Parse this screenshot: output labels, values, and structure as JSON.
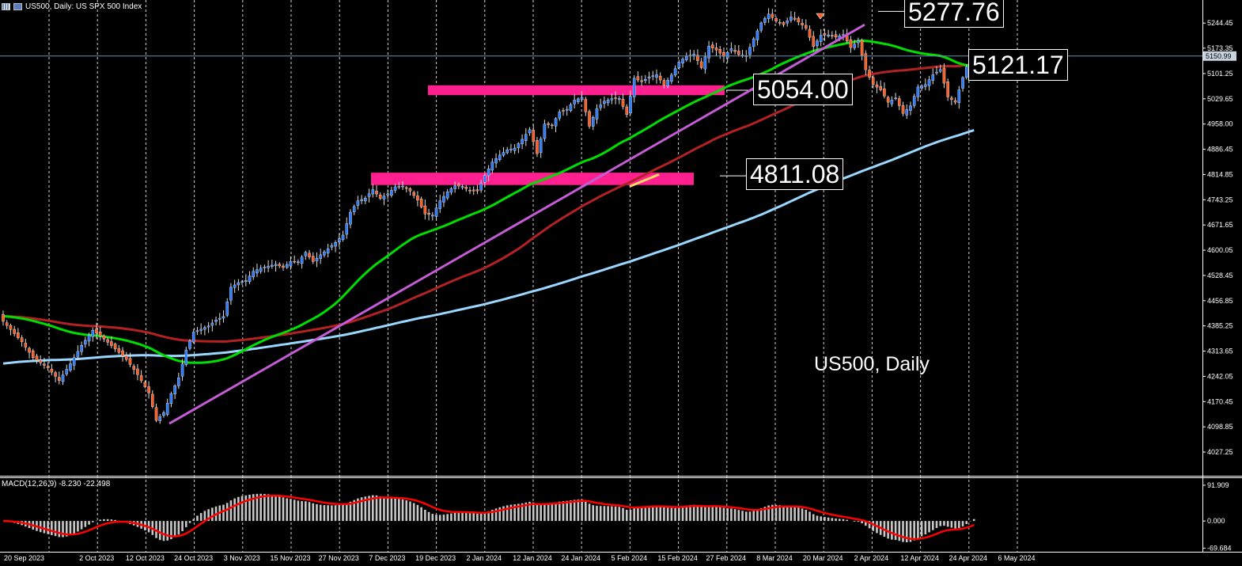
{
  "header": {
    "symbol_text": "US500, Daily:  US SPX 500 Index"
  },
  "watermark": "US500, Daily",
  "macd_label": "MACD(12,26,9) -8.230 -22.498",
  "callouts": {
    "high": "5277.76",
    "current": "5121.17",
    "zone_upper": "5054.00",
    "zone_lower": "4811.08"
  },
  "current_price_tag": "5150.99",
  "colors": {
    "background": "#000000",
    "bull_candle": "#2b7bff",
    "bear_candle": "#ff5a1f",
    "ma_fast": "#00dd00",
    "ma_mid": "#b22222",
    "ma_slow": "#9ad7ff",
    "trendline": "#c45cd6",
    "zones": "#ff1f8f",
    "macd_signal": "#ff0000",
    "macd_hist": "#c8c8c8"
  },
  "chart_data": [
    {
      "type": "candlestick",
      "title": "US500, Daily",
      "y_ticks": [
        "5244.45",
        "5173.35",
        "5101.25",
        "5029.65",
        "4958.00",
        "4886.45",
        "4814.85",
        "4743.25",
        "4671.65",
        "4600.05",
        "4528.45",
        "4456.85",
        "4385.25",
        "4313.65",
        "4242.05",
        "4170.45",
        "4098.85",
        "4027.25"
      ],
      "x_ticks": [
        "20 Sep 2023",
        "2 Oct 2023",
        "12 Oct 2023",
        "24 Oct 2023",
        "3 Nov 2023",
        "15 Nov 2023",
        "27 Nov 2023",
        "7 Dec 2023",
        "19 Dec 2023",
        "2 Jan 2024",
        "12 Jan 2024",
        "24 Jan 2024",
        "5 Feb 2024",
        "15 Feb 2024",
        "27 Feb 2024",
        "8 Mar 2024",
        "20 Mar 2024",
        "2 Apr 2024",
        "12 Apr 2024",
        "24 Apr 2024",
        "6 May 2024"
      ],
      "ylim": [
        3960,
        5310
      ],
      "horizontal_levels": [
        5277.76,
        5121.17,
        5054.0,
        4811.08
      ],
      "support_zones": [
        [
          5040,
          5068
        ],
        [
          4785,
          4820
        ]
      ],
      "close_anchors": [
        [
          0,
          4398
        ],
        [
          5,
          4340
        ],
        [
          8,
          4295
        ],
        [
          12,
          4266
        ],
        [
          15,
          4230
        ],
        [
          18,
          4278
        ],
        [
          21,
          4330
        ],
        [
          24,
          4373
        ],
        [
          27,
          4348
        ],
        [
          30,
          4320
        ],
        [
          33,
          4290
        ],
        [
          36,
          4247
        ],
        [
          39,
          4195
        ],
        [
          41,
          4117
        ],
        [
          43,
          4139
        ],
        [
          45,
          4193
        ],
        [
          47,
          4238
        ],
        [
          49,
          4317
        ],
        [
          51,
          4368
        ],
        [
          53,
          4376
        ],
        [
          55,
          4385
        ],
        [
          57,
          4402
        ],
        [
          59,
          4412
        ],
        [
          61,
          4495
        ],
        [
          63,
          4508
        ],
        [
          65,
          4514
        ],
        [
          67,
          4540
        ],
        [
          69,
          4549
        ],
        [
          71,
          4555
        ],
        [
          73,
          4560
        ],
        [
          75,
          4551
        ],
        [
          77,
          4568
        ],
        [
          79,
          4567
        ],
        [
          81,
          4594
        ],
        [
          83,
          4568
        ],
        [
          85,
          4587
        ],
        [
          87,
          4604
        ],
        [
          89,
          4622
        ],
        [
          91,
          4643
        ],
        [
          93,
          4708
        ],
        [
          95,
          4740
        ],
        [
          97,
          4748
        ],
        [
          99,
          4772
        ],
        [
          101,
          4747
        ],
        [
          103,
          4760
        ],
        [
          105,
          4780
        ],
        [
          107,
          4782
        ],
        [
          109,
          4768
        ],
        [
          111,
          4742
        ],
        [
          113,
          4703
        ],
        [
          115,
          4700
        ],
        [
          117,
          4740
        ],
        [
          119,
          4766
        ],
        [
          121,
          4783
        ],
        [
          123,
          4781
        ],
        [
          125,
          4768
        ],
        [
          127,
          4768
        ],
        [
          129,
          4812
        ],
        [
          131,
          4850
        ],
        [
          133,
          4870
        ],
        [
          135,
          4885
        ],
        [
          137,
          4890
        ],
        [
          139,
          4915
        ],
        [
          141,
          4942
        ],
        [
          143,
          4874
        ],
        [
          145,
          4958
        ],
        [
          147,
          4955
        ],
        [
          149,
          4992
        ],
        [
          151,
          5000
        ],
        [
          153,
          5026
        ],
        [
          155,
          5033
        ],
        [
          157,
          4952
        ],
        [
          159,
          5002
        ],
        [
          161,
          5023
        ],
        [
          163,
          5030
        ],
        [
          165,
          5031
        ],
        [
          167,
          4985
        ],
        [
          169,
          5088
        ],
        [
          171,
          5078
        ],
        [
          173,
          5092
        ],
        [
          175,
          5098
        ],
        [
          177,
          5068
        ],
        [
          179,
          5097
        ],
        [
          181,
          5134
        ],
        [
          183,
          5150
        ],
        [
          185,
          5157
        ],
        [
          187,
          5118
        ],
        [
          189,
          5179
        ],
        [
          191,
          5168
        ],
        [
          193,
          5150
        ],
        [
          195,
          5172
        ],
        [
          197,
          5155
        ],
        [
          199,
          5152
        ],
        [
          201,
          5200
        ],
        [
          203,
          5245
        ],
        [
          205,
          5270
        ],
        [
          207,
          5250
        ],
        [
          209,
          5240
        ],
        [
          211,
          5262
        ],
        [
          213,
          5248
        ],
        [
          215,
          5230
        ],
        [
          217,
          5178
        ],
        [
          219,
          5210
        ],
        [
          221,
          5211
        ],
        [
          223,
          5205
        ],
        [
          225,
          5212
        ],
        [
          227,
          5175
        ],
        [
          229,
          5195
        ],
        [
          231,
          5112
        ],
        [
          233,
          5070
        ],
        [
          235,
          5055
        ],
        [
          237,
          5020
        ],
        [
          239,
          5032
        ],
        [
          241,
          4988
        ],
        [
          243,
          5010
        ],
        [
          245,
          5063
        ],
        [
          247,
          5070
        ],
        [
          249,
          5098
        ],
        [
          251,
          5113
        ],
        [
          253,
          5035
        ],
        [
          255,
          5020
        ],
        [
          257,
          5090
        ],
        [
          259,
          5150
        ]
      ]
    },
    {
      "type": "line",
      "title": "MACD(12,26,9)",
      "y_ticks": [
        "91.909",
        "0.000",
        "-69.684"
      ],
      "ylim": [
        -75,
        100
      ]
    }
  ]
}
